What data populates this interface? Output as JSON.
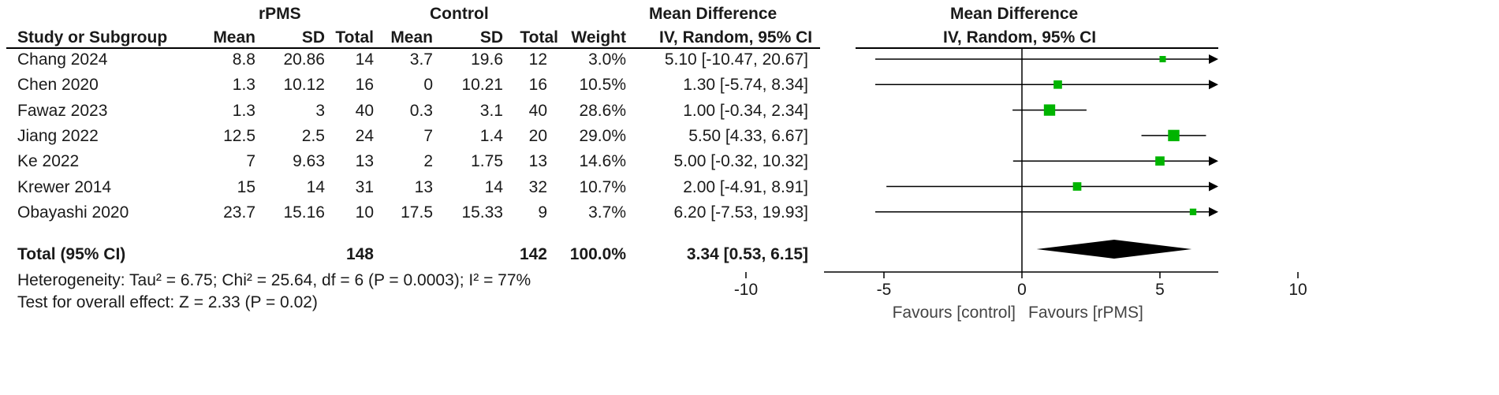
{
  "headers": {
    "group1": "rPMS",
    "group2": "Control",
    "md_top": "Mean Difference",
    "md_sub": "IV, Random, 95% CI",
    "plot_top": "Mean Difference",
    "plot_sub": "IV, Random, 95% CI",
    "study": "Study or Subgroup",
    "mean1": "Mean",
    "sd1": "SD",
    "total1": "Total",
    "mean2": "Mean",
    "sd2": "SD",
    "total2": "Total",
    "weight": "Weight"
  },
  "studies": [
    {
      "name": "Chang 2024",
      "mean1": "8.8",
      "sd1": "20.86",
      "n1": "14",
      "mean2": "3.7",
      "sd2": "19.6",
      "n2": "12",
      "weight": "3.0%",
      "ci": "5.10 [-10.47, 20.67]"
    },
    {
      "name": "Chen 2020",
      "mean1": "1.3",
      "sd1": "10.12",
      "n1": "16",
      "mean2": "0",
      "sd2": "10.21",
      "n2": "16",
      "weight": "10.5%",
      "ci": "1.30 [-5.74, 8.34]"
    },
    {
      "name": "Fawaz 2023",
      "mean1": "1.3",
      "sd1": "3",
      "n1": "40",
      "mean2": "0.3",
      "sd2": "3.1",
      "n2": "40",
      "weight": "28.6%",
      "ci": "1.00 [-0.34, 2.34]"
    },
    {
      "name": "Jiang 2022",
      "mean1": "12.5",
      "sd1": "2.5",
      "n1": "24",
      "mean2": "7",
      "sd2": "1.4",
      "n2": "20",
      "weight": "29.0%",
      "ci": "5.50 [4.33, 6.67]"
    },
    {
      "name": "Ke 2022",
      "mean1": "7",
      "sd1": "9.63",
      "n1": "13",
      "mean2": "2",
      "sd2": "1.75",
      "n2": "13",
      "weight": "14.6%",
      "ci": "5.00 [-0.32, 10.32]"
    },
    {
      "name": "Krewer 2014",
      "mean1": "15",
      "sd1": "14",
      "n1": "31",
      "mean2": "13",
      "sd2": "14",
      "n2": "32",
      "weight": "10.7%",
      "ci": "2.00 [-4.91, 8.91]"
    },
    {
      "name": "Obayashi 2020",
      "mean1": "23.7",
      "sd1": "15.16",
      "n1": "10",
      "mean2": "17.5",
      "sd2": "15.33",
      "n2": "9",
      "weight": "3.7%",
      "ci": "6.20 [-7.53, 19.93]"
    }
  ],
  "total": {
    "label": "Total (95% CI)",
    "n1": "148",
    "n2": "142",
    "weight": "100.0%",
    "ci": "3.34 [0.53, 6.15]"
  },
  "heterogeneity": "Heterogeneity: Tau² = 6.75; Chi² = 25.64, df = 6 (P = 0.0003); I² = 77%",
  "overall_effect": "Test for overall effect: Z = 2.33 (P = 0.02)",
  "favours_left": "Favours [control]",
  "favours_right": "Favours [rPMS]",
  "colors": {
    "marker": "#00b400",
    "line": "#000000",
    "diamond": "#000000"
  },
  "chart_data": {
    "type": "forest",
    "title": "Mean Difference IV, Random, 95% CI",
    "xlim": [
      -15,
      15
    ],
    "x_ticks": [
      -10,
      -5,
      0,
      5,
      10
    ],
    "xlabel_left": "Favours [control]",
    "xlabel_right": "Favours [rPMS]",
    "points": [
      {
        "study": "Chang 2024",
        "md": 5.1,
        "lo": -10.47,
        "hi": 20.67,
        "weight": 3.0
      },
      {
        "study": "Chen 2020",
        "md": 1.3,
        "lo": -5.74,
        "hi": 8.34,
        "weight": 10.5
      },
      {
        "study": "Fawaz 2023",
        "md": 1.0,
        "lo": -0.34,
        "hi": 2.34,
        "weight": 28.6
      },
      {
        "study": "Jiang 2022",
        "md": 5.5,
        "lo": 4.33,
        "hi": 6.67,
        "weight": 29.0
      },
      {
        "study": "Ke 2022",
        "md": 5.0,
        "lo": -0.32,
        "hi": 10.32,
        "weight": 14.6
      },
      {
        "study": "Krewer 2014",
        "md": 2.0,
        "lo": -4.91,
        "hi": 8.91,
        "weight": 10.7
      },
      {
        "study": "Obayashi 2020",
        "md": 6.2,
        "lo": -7.53,
        "hi": 19.93,
        "weight": 3.7
      }
    ],
    "pooled": {
      "md": 3.34,
      "lo": 0.53,
      "hi": 6.15
    }
  }
}
